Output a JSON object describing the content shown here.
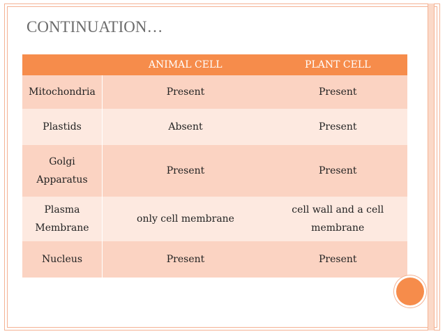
{
  "slide": {
    "title": "CONTINUATION…"
  },
  "table": {
    "headers": [
      "",
      "ANIMAL CELL",
      "PLANT CELL"
    ],
    "rows": [
      {
        "feature": "Mitochondria",
        "animal": "Present",
        "plant": "Present"
      },
      {
        "feature": "Plastids",
        "animal": "Absent",
        "plant": "Present"
      },
      {
        "feature": "Golgi Apparatus",
        "animal": "Present",
        "plant": "Present"
      },
      {
        "feature": "Plasma Membrane",
        "animal": "only cell membrane",
        "plant": "cell wall and a cell membrane"
      },
      {
        "feature": "Nucleus",
        "animal": "Present",
        "plant": "Present"
      }
    ]
  },
  "colors": {
    "accent": "#f68c4b",
    "row_dark": "#fbd3c2",
    "row_light": "#fde9e0",
    "frame": "#f4b294",
    "title": "#6b6b6b"
  }
}
